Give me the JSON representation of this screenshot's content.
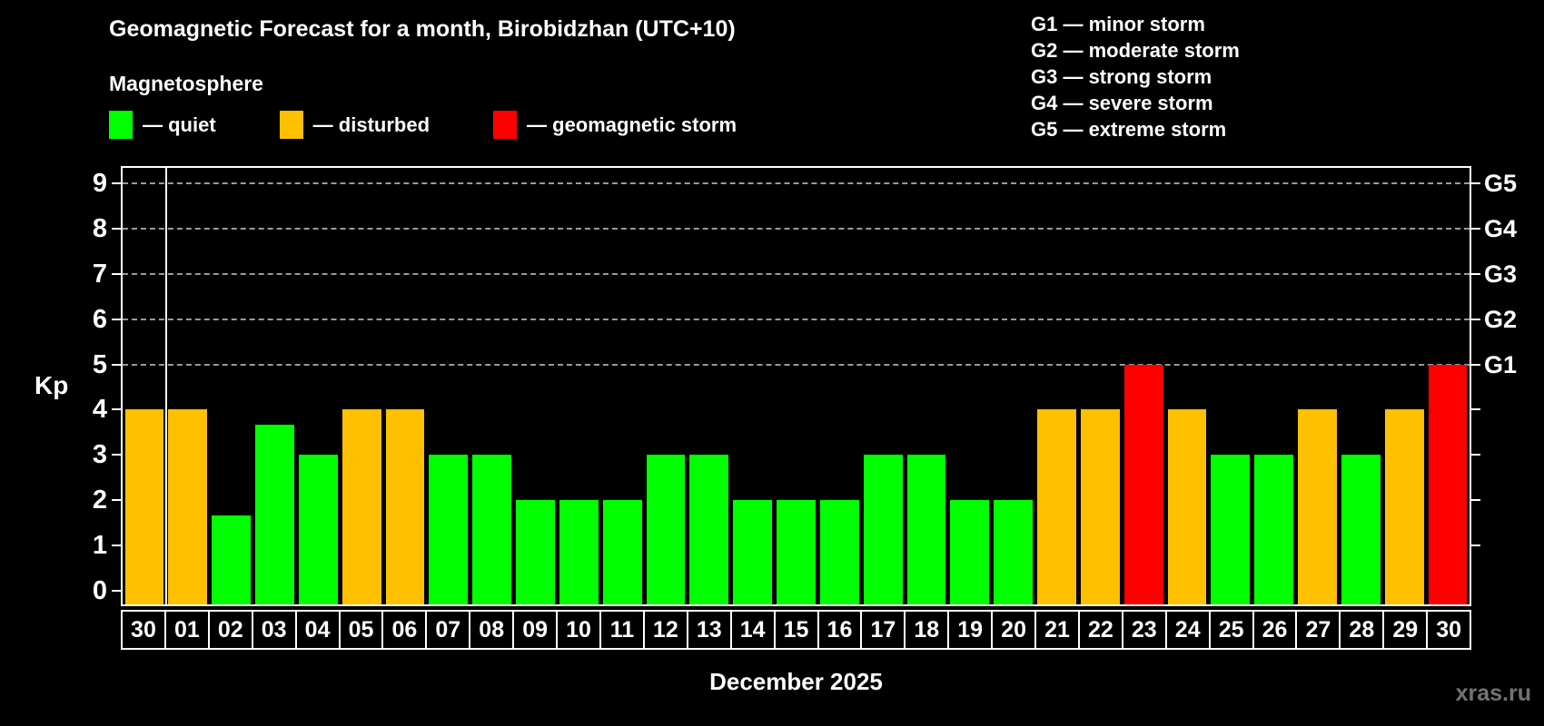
{
  "page": {
    "title": "Geomagnetic Forecast for a month, Birobidzhan (UTC+10)",
    "subtitle": "Magnetosphere",
    "kp_axis_label": "Kp",
    "month_label": "December 2025",
    "watermark": "xras.ru"
  },
  "status_colors": {
    "quiet": "#00ff00",
    "disturbed": "#ffc000",
    "storm": "#ff0000"
  },
  "legend": [
    {
      "status": "quiet",
      "label": "— quiet"
    },
    {
      "status": "disturbed",
      "label": "— disturbed"
    },
    {
      "status": "storm",
      "label": "— geomagnetic storm"
    }
  ],
  "g_scale_legend": [
    "G1 — minor storm",
    "G2 — moderate storm",
    "G3 — strong storm",
    "G4 — severe storm",
    "G5 — extreme storm"
  ],
  "chart_data": {
    "type": "bar",
    "title": "Geomagnetic Forecast for a month, Birobidzhan (UTC+10)",
    "subtitle": "Magnetosphere",
    "xlabel": "December 2025",
    "ylabel": "Kp",
    "ylim": [
      -0.3,
      9.34
    ],
    "yticks_left": [
      0,
      1,
      2,
      3,
      4,
      5,
      6,
      7,
      8,
      9
    ],
    "yticks_right": [
      1,
      2,
      3,
      4,
      5,
      6,
      7,
      8,
      9
    ],
    "gridlines": [
      5,
      6,
      7,
      8,
      9
    ],
    "grid": "horizontal dashed at storm levels G1-G5",
    "legend_position": "top-left",
    "right_axis_labels": [
      {
        "value": 5,
        "label": "G1"
      },
      {
        "value": 6,
        "label": "G2"
      },
      {
        "value": 7,
        "label": "G3"
      },
      {
        "value": 8,
        "label": "G4"
      },
      {
        "value": 9,
        "label": "G5"
      }
    ],
    "categories": [
      "30",
      "01",
      "02",
      "03",
      "04",
      "05",
      "06",
      "07",
      "08",
      "09",
      "10",
      "11",
      "12",
      "13",
      "14",
      "15",
      "16",
      "17",
      "18",
      "19",
      "20",
      "21",
      "22",
      "23",
      "24",
      "25",
      "26",
      "27",
      "28",
      "29",
      "30"
    ],
    "values": [
      4,
      4,
      1.67,
      3.67,
      3,
      4,
      4,
      3,
      3,
      2,
      2,
      2,
      3,
      3,
      2,
      2,
      2,
      3,
      3,
      2,
      2,
      4,
      4,
      5,
      4,
      3,
      3,
      4,
      3,
      4,
      5
    ],
    "statuses": [
      "disturbed",
      "disturbed",
      "quiet",
      "quiet",
      "quiet",
      "disturbed",
      "disturbed",
      "quiet",
      "quiet",
      "quiet",
      "quiet",
      "quiet",
      "quiet",
      "quiet",
      "quiet",
      "quiet",
      "quiet",
      "quiet",
      "quiet",
      "quiet",
      "quiet",
      "disturbed",
      "disturbed",
      "storm",
      "disturbed",
      "quiet",
      "quiet",
      "disturbed",
      "quiet",
      "disturbed",
      "storm"
    ],
    "month_boundary_after_index": 0
  }
}
